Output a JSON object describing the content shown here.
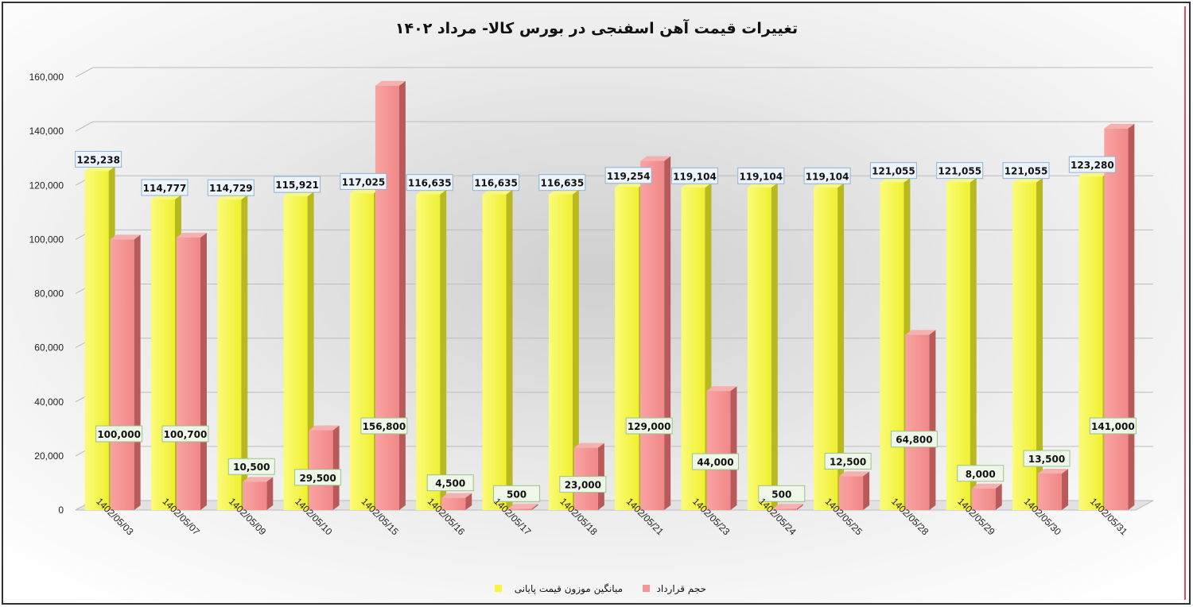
{
  "chart_data": {
    "type": "bar",
    "title": "تغییرات قیمت آهن اسفنجی در بورس کالا- مرداد ۱۴۰۲",
    "xlabel": "",
    "ylabel": "",
    "ylim": [
      0,
      160000
    ],
    "ytick_step": 20000,
    "yticks": [
      "0",
      "20,000",
      "40,000",
      "60,000",
      "80,000",
      "100,000",
      "120,000",
      "140,000",
      "160,000"
    ],
    "grid": true,
    "legend_position": "bottom-center",
    "categories": [
      "1402/05/03",
      "1402/05/07",
      "1402/05/09",
      "1402/05/10",
      "1402/05/15",
      "1402/05/16",
      "1402/05/17",
      "1402/05/18",
      "1402/05/21",
      "1402/05/23",
      "1402/05/24",
      "1402/05/25",
      "1402/05/28",
      "1402/05/29",
      "1402/05/30",
      "1402/05/31"
    ],
    "series": [
      {
        "name": "میانگین موزون قیمت پایانی",
        "color": "#f5f542",
        "values": [
          125238,
          114777,
          114729,
          115921,
          117025,
          116635,
          116635,
          116635,
          119254,
          119104,
          119104,
          119104,
          121055,
          121055,
          121055,
          123280
        ],
        "labels": [
          "125,238",
          "114,777",
          "114,729",
          "115,921",
          "117,025",
          "116,635",
          "116,635",
          "116,635",
          "119,254",
          "119,104",
          "119,104",
          "119,104",
          "121,055",
          "121,055",
          "121,055",
          "123,280"
        ]
      },
      {
        "name": "حجم قرارداد",
        "color": "#f59494",
        "values": [
          100000,
          100700,
          10500,
          29500,
          156800,
          4500,
          500,
          23000,
          129000,
          44000,
          500,
          12500,
          64800,
          8000,
          13500,
          141000
        ],
        "labels": [
          "100,000",
          "100,700",
          "10,500",
          "29,500",
          "156,800",
          "4,500",
          "500",
          "23,000",
          "129,000",
          "44,000",
          "500",
          "12,500",
          "64,800",
          "8,000",
          "13,500",
          "141,000"
        ]
      }
    ]
  }
}
